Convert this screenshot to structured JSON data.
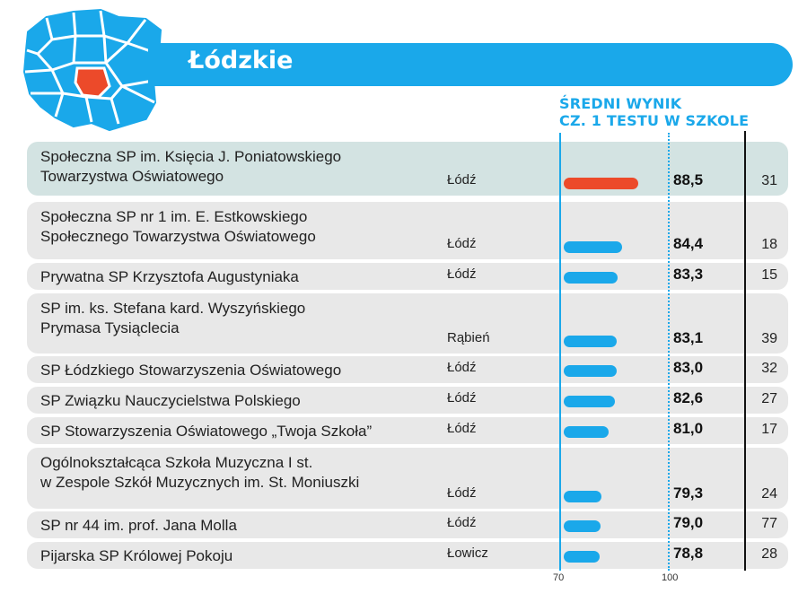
{
  "region": {
    "name": "Łódzkie"
  },
  "column_header": {
    "line1": "ŚREDNI WYNIK",
    "line2": "CZ. 1 TESTU W SZKOLE"
  },
  "colors": {
    "accent": "#1aa8ea",
    "highlight_bar": "#ec4a2a",
    "highlight_row": "#d3e3e2",
    "row_bg": "#e8e8e8"
  },
  "chart_data": {
    "type": "bar",
    "orientation": "horizontal",
    "xlim": [
      70,
      100
    ],
    "tick_labels": [
      "70",
      "100"
    ],
    "rows": [
      {
        "school_lines": [
          "Społeczna SP im. Księcia J. Poniatowskiego",
          "Towarzystwa Oświatowego"
        ],
        "city": "Łódź",
        "score": 88.5,
        "score_label": "88,5",
        "count": "31",
        "highlight": true
      },
      {
        "school_lines": [
          "Społeczna SP nr 1 im. E. Estkowskiego",
          "Społecznego Towarzystwa Oświatowego"
        ],
        "city": "Łódź",
        "score": 84.4,
        "score_label": "84,4",
        "count": "18",
        "highlight": false
      },
      {
        "school_lines": [
          "Prywatna SP Krzysztofa Augustyniaka"
        ],
        "city": "Łódź",
        "score": 83.3,
        "score_label": "83,3",
        "count": "15",
        "highlight": false
      },
      {
        "school_lines": [
          "SP im. ks. Stefana kard. Wyszyńskiego",
          "Prymasa Tysiąclecia"
        ],
        "city": "Rąbień",
        "score": 83.1,
        "score_label": "83,1",
        "count": "39",
        "highlight": false
      },
      {
        "school_lines": [
          "SP Łódzkiego Stowarzyszenia Oświatowego"
        ],
        "city": "Łódź",
        "score": 83.0,
        "score_label": "83,0",
        "count": "32",
        "highlight": false
      },
      {
        "school_lines": [
          "SP Związku Nauczycielstwa Polskiego"
        ],
        "city": "Łódź",
        "score": 82.6,
        "score_label": "82,6",
        "count": "27",
        "highlight": false
      },
      {
        "school_lines": [
          "SP Stowarzyszenia Oświatowego „Twoja Szkoła”"
        ],
        "city": "Łódź",
        "score": 81.0,
        "score_label": "81,0",
        "count": "17",
        "highlight": false
      },
      {
        "school_lines": [
          "Ogólnokształcąca Szkoła Muzyczna I st.",
          "w Zespole Szkół Muzycznych im. St. Moniuszki"
        ],
        "city": "Łódź",
        "score": 79.3,
        "score_label": "79,3",
        "count": "24",
        "highlight": false
      },
      {
        "school_lines": [
          "SP nr 44 im. prof. Jana Molla"
        ],
        "city": "Łódź",
        "score": 79.0,
        "score_label": "79,0",
        "count": "77",
        "highlight": false
      },
      {
        "school_lines": [
          "Pijarska SP Królowej Pokoju"
        ],
        "city": "Łowicz",
        "score": 78.8,
        "score_label": "78,8",
        "count": "28",
        "highlight": false
      }
    ]
  }
}
